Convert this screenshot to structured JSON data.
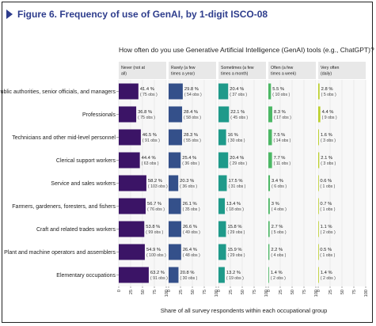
{
  "figure": {
    "title": "Figure 6. Frequency of use of GenAI, by 1-digit ISCO-08",
    "subtitle": "How often do you use Generative Artificial Intelligence (GenAI) tools (e.g., ChatGPT)?",
    "x_axis_label": "Share of all survey respondents within each occupational group"
  },
  "chart_data": {
    "type": "bar",
    "orientation": "horizontal",
    "layout": "small-multiples",
    "title": "Figure 6. Frequency of use of GenAI, by 1-digit ISCO-08",
    "subtitle": "How often do you use Generative Artificial Intelligence (GenAI) tools (e.g., ChatGPT)?",
    "xlabel": "Share of all survey respondents within each occupational group",
    "xlim": [
      0,
      100
    ],
    "xticks": [
      "0",
      "25",
      "50",
      "75",
      "100"
    ],
    "categories": [
      "Public authorities, senior officials, and managers",
      "Professionals",
      "Technicians and other mid-level personnel",
      "Clerical support workers",
      "Service and sales workers",
      "Farmers, gardeners, foresters, and fishers",
      "Craft and related trades workers",
      "Plant and machine operators and assemblers",
      "Elementary occupations"
    ],
    "series": [
      {
        "name": "Never (not at all)",
        "color": "#3b1466",
        "values": [
          41.4,
          36.8,
          46.5,
          44.4,
          58.2,
          56.7,
          53.8,
          54.9,
          63.2
        ],
        "labels": [
          "41.4 %",
          "36.8 %",
          "46.5 %",
          "44.4 %",
          "58.2 %",
          "56.7 %",
          "53.8 %",
          "54.9 %",
          "63.2 %"
        ],
        "obs": [
          "( 75 obs )",
          "( 75 obs )",
          "( 91 obs )",
          "( 63 obs )",
          "( 103 obs )",
          "( 76 obs )",
          "( 99 obs )",
          "( 100 obs )",
          "( 91 obs )"
        ]
      },
      {
        "name": "Rarely (a few times a year)",
        "color": "#34508a",
        "values": [
          29.8,
          28.4,
          28.3,
          25.4,
          20.3,
          26.1,
          26.6,
          26.4,
          20.8
        ],
        "labels": [
          "29.8 %",
          "28.4 %",
          "28.3 %",
          "25.4 %",
          "20.3 %",
          "26.1 %",
          "26.6 %",
          "26.4 %",
          "20.8 %"
        ],
        "obs": [
          "( 54 obs )",
          "( 58 obs )",
          "( 55 obs )",
          "( 36 obs )",
          "( 36 obs )",
          "( 35 obs )",
          "( 49 obs )",
          "( 48 obs )",
          "( 30 obs )"
        ]
      },
      {
        "name": "Sometimes (a few times a month)",
        "color": "#1f9a8a",
        "values": [
          20.4,
          22.1,
          16.0,
          20.4,
          17.5,
          13.4,
          15.8,
          15.9,
          13.2
        ],
        "labels": [
          "20.4 %",
          "22.1 %",
          "16 %",
          "20.4 %",
          "17.5 %",
          "13.4 %",
          "15.8 %",
          "15.9 %",
          "13.2 %"
        ],
        "obs": [
          "( 37 obs )",
          "( 45 obs )",
          "( 30 obs )",
          "( 29 obs )",
          "( 31 obs )",
          "( 18 obs )",
          "( 29 obs )",
          "( 29 obs )",
          "( 19 obs )"
        ]
      },
      {
        "name": "Often (a few times a week)",
        "color": "#4cb865",
        "values": [
          5.5,
          8.3,
          7.5,
          7.7,
          3.4,
          3.0,
          2.7,
          2.2,
          1.4
        ],
        "labels": [
          "5.5 %",
          "8.3 %",
          "7.5 %",
          "7.7 %",
          "3.4 %",
          "3 %",
          "2.7 %",
          "2.2 %",
          "1.4 %"
        ],
        "obs": [
          "( 10 obs )",
          "( 17 obs )",
          "( 14 obs )",
          "( 11 obs )",
          "( 6 obs )",
          "( 4 obs )",
          "( 5 obs )",
          "( 4 obs )",
          "( 2 obs )"
        ]
      },
      {
        "name": "Very often (daily)",
        "color": "#bcd02b",
        "values": [
          2.8,
          4.4,
          1.6,
          2.1,
          0.6,
          0.7,
          1.1,
          0.5,
          1.4
        ],
        "labels": [
          "2.8 %",
          "4.4 %",
          "1.6 %",
          "2.1 %",
          "0.6 %",
          "0.7 %",
          "1.1 %",
          "0.5 %",
          "1.4 %"
        ],
        "obs": [
          "( 5 obs )",
          "( 9 obs )",
          "( 3 obs )",
          "( 3 obs )",
          "( 1 obs )",
          "( 1 obs )",
          "( 2 obs )",
          "( 1 obs )",
          "( 2 obs )"
        ]
      }
    ],
    "grid": true
  }
}
